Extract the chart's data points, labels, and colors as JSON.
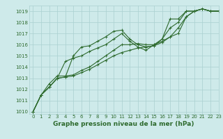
{
  "xlabel": "Graphe pression niveau de la mer (hPa)",
  "ylim": [
    1009.8,
    1019.5
  ],
  "xlim": [
    -0.5,
    23
  ],
  "yticks": [
    1010,
    1011,
    1012,
    1013,
    1014,
    1015,
    1016,
    1017,
    1018,
    1019
  ],
  "xticks": [
    0,
    1,
    2,
    3,
    4,
    5,
    6,
    7,
    8,
    9,
    10,
    11,
    12,
    13,
    14,
    15,
    16,
    17,
    18,
    19,
    20,
    21,
    22,
    23
  ],
  "bg_color": "#ceeaea",
  "grid_color": "#aad0d0",
  "line_color": "#2d6a2d",
  "series": [
    [
      1010.0,
      1011.5,
      1012.2,
      1013.0,
      1013.1,
      1015.0,
      1015.8,
      1015.9,
      1016.3,
      1016.7,
      1017.2,
      1017.3,
      1016.5,
      1016.0,
      1015.8,
      1015.9,
      1016.5,
      1018.3,
      1018.3,
      1019.0,
      1019.0,
      1019.2,
      1019.0,
      1019.0
    ],
    [
      1010.0,
      1011.5,
      1012.2,
      1013.0,
      1014.5,
      1014.8,
      1015.0,
      1015.4,
      1015.7,
      1016.0,
      1016.5,
      1017.0,
      1016.3,
      1015.8,
      1015.5,
      1016.0,
      1016.5,
      1017.5,
      1018.0,
      1019.0,
      1019.0,
      1019.2,
      1019.0,
      1019.0
    ],
    [
      1010.0,
      1011.5,
      1012.2,
      1013.0,
      1013.1,
      1013.2,
      1013.5,
      1013.8,
      1014.2,
      1014.6,
      1015.0,
      1015.3,
      1015.5,
      1015.7,
      1015.8,
      1015.9,
      1016.2,
      1016.7,
      1017.5,
      1018.5,
      1019.0,
      1019.2,
      1019.0,
      1019.0
    ],
    [
      1010.0,
      1011.5,
      1012.5,
      1013.2,
      1013.2,
      1013.3,
      1013.7,
      1014.0,
      1014.5,
      1015.0,
      1015.5,
      1016.0,
      1016.0,
      1016.1,
      1016.0,
      1016.0,
      1016.3,
      1016.7,
      1017.0,
      1018.5,
      1019.0,
      1019.2,
      1019.0,
      1019.0
    ]
  ],
  "marker": "+",
  "markersize": 3.5,
  "linewidth": 0.8,
  "tick_fontsize": 5.0,
  "xlabel_fontsize": 6.5,
  "xlabel_bold": true
}
